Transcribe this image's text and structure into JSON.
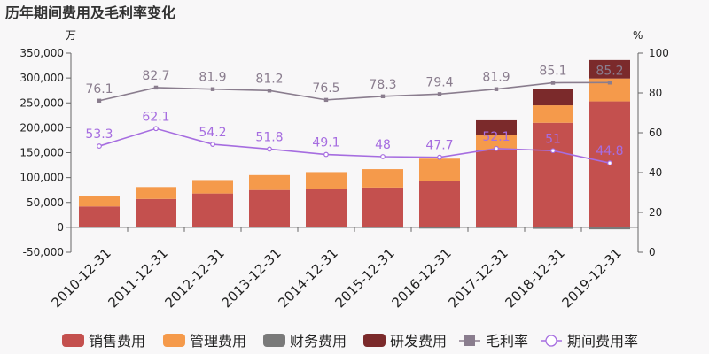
{
  "chart_data": {
    "type": "bar",
    "title": "历年期间费用及毛利率变化",
    "left_unit": "万",
    "right_unit": "%",
    "categories": [
      "2010-12-31",
      "2011-12-31",
      "2012-12-31",
      "2013-12-31",
      "2014-12-31",
      "2015-12-31",
      "2016-12-31",
      "2017-12-31",
      "2018-12-31",
      "2019-12-31"
    ],
    "ylim_left": [
      -50000,
      350000
    ],
    "yticks_left": [
      "-50,000",
      "0",
      "50,000",
      "100,000",
      "150,000",
      "200,000",
      "250,000",
      "300,000",
      "350,000"
    ],
    "ytick_values_left": [
      -50000,
      0,
      50000,
      100000,
      150000,
      200000,
      250000,
      300000,
      350000
    ],
    "ylim_right": [
      0,
      100
    ],
    "yticks_right": [
      "0",
      "20",
      "40",
      "60",
      "80",
      "100"
    ],
    "ytick_values_right": [
      0,
      20,
      40,
      60,
      80,
      100
    ],
    "bar_series": [
      {
        "name": "销售费用",
        "color": "#c4504e",
        "values": [
          42000,
          57000,
          68000,
          75000,
          77000,
          80000,
          94000,
          155000,
          210000,
          253000
        ]
      },
      {
        "name": "管理费用",
        "color": "#f59a4b",
        "values": [
          20000,
          24000,
          27000,
          30000,
          34000,
          37000,
          44000,
          30000,
          35000,
          46000
        ]
      },
      {
        "name": "财务费用",
        "color": "#7a7a7a",
        "values": [
          -500,
          -500,
          -800,
          -1000,
          -1000,
          -1500,
          -2500,
          -1500,
          -3000,
          -4000
        ]
      },
      {
        "name": "研发费用",
        "color": "#7b2a2b",
        "values": [
          0,
          0,
          0,
          0,
          0,
          0,
          0,
          30000,
          33000,
          37000
        ]
      }
    ],
    "line_series": [
      {
        "name": "毛利率",
        "color": "#8a7d8e",
        "marker": "square",
        "values": [
          76.1,
          82.7,
          81.9,
          81.2,
          76.5,
          78.3,
          79.4,
          81.9,
          85.1,
          85.2
        ],
        "labels": [
          "76.1",
          "82.7",
          "81.9",
          "81.2",
          "76.5",
          "78.3",
          "79.4",
          "81.9",
          "85.1",
          "85.2"
        ]
      },
      {
        "name": "期间费用率",
        "color": "#a66de0",
        "marker": "circle",
        "values": [
          53.3,
          62.1,
          54.2,
          51.8,
          49.1,
          48,
          47.7,
          52.1,
          51,
          44.8
        ],
        "labels": [
          "53.3",
          "62.1",
          "54.2",
          "51.8",
          "49.1",
          "48",
          "47.7",
          "52.1",
          "51",
          "44.8"
        ]
      }
    ],
    "legend_position": "bottom",
    "grid": false
  }
}
